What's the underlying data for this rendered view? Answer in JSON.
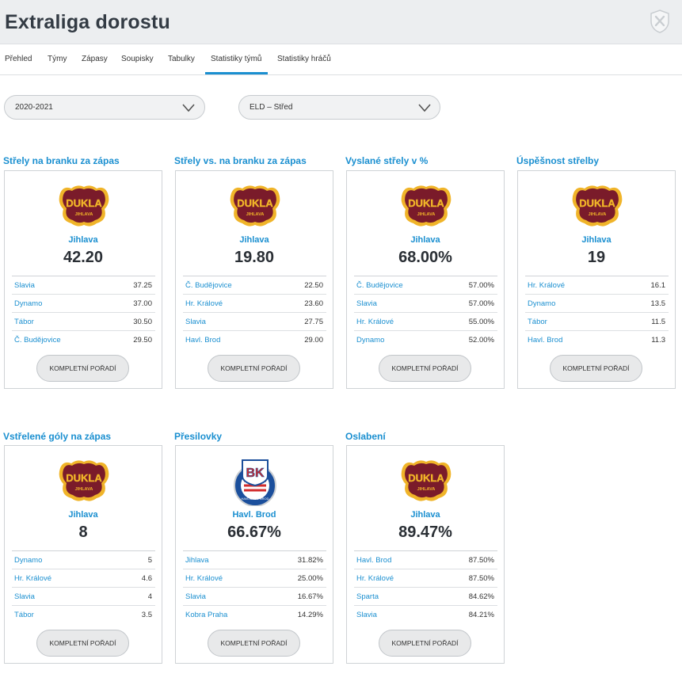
{
  "header": {
    "title": "Extraliga dorostu"
  },
  "tabs": [
    {
      "label": "Přehled"
    },
    {
      "label": "Týmy"
    },
    {
      "label": "Zápasy"
    },
    {
      "label": "Soupisky"
    },
    {
      "label": "Tabulky"
    },
    {
      "label": "Statistiky týmů"
    },
    {
      "label": "Statistiky hráčů"
    }
  ],
  "active_tab": "Statistiky týmů",
  "filters": {
    "season": "2020-2021",
    "group": "ELD – Střed"
  },
  "button_label": "KOMPLETNÍ POŘADÍ",
  "logo_text": {
    "dukla_main": "DUKLA",
    "dukla_sub": "JIHLAVA",
    "bk_main": "BK",
    "bk_sub": "HAVLÍČKŮV BROD"
  },
  "colors": {
    "accent": "#1a8fd0",
    "dukla_maroon": "#7a1b2a",
    "dukla_gold": "#f0b429",
    "bk_blue": "#1b4f9c",
    "bk_red": "#d22b2b"
  },
  "cards": [
    {
      "title": "Střely na branku za zápas",
      "logo": "dukla-logo",
      "leader": "Jihlava",
      "value": "42.20",
      "rows": [
        {
          "team": "Slavia",
          "value": "37.25"
        },
        {
          "team": "Dynamo",
          "value": "37.00"
        },
        {
          "team": "Tábor",
          "value": "30.50"
        },
        {
          "team": "Č. Budějovice",
          "value": "29.50"
        }
      ]
    },
    {
      "title": "Střely vs. na branku za zápas",
      "logo": "dukla-logo",
      "leader": "Jihlava",
      "value": "19.80",
      "rows": [
        {
          "team": "Č. Budějovice",
          "value": "22.50"
        },
        {
          "team": "Hr. Králové",
          "value": "23.60"
        },
        {
          "team": "Slavia",
          "value": "27.75"
        },
        {
          "team": "Havl. Brod",
          "value": "29.00"
        }
      ]
    },
    {
      "title": "Vyslané střely v %",
      "logo": "dukla-logo",
      "leader": "Jihlava",
      "value": "68.00%",
      "rows": [
        {
          "team": "Č. Budějovice",
          "value": "57.00%"
        },
        {
          "team": "Slavia",
          "value": "57.00%"
        },
        {
          "team": "Hr. Králové",
          "value": "55.00%"
        },
        {
          "team": "Dynamo",
          "value": "52.00%"
        }
      ]
    },
    {
      "title": "Úspěšnost střelby",
      "logo": "dukla-logo",
      "leader": "Jihlava",
      "value": "19",
      "rows": [
        {
          "team": "Hr. Králové",
          "value": "16.1"
        },
        {
          "team": "Dynamo",
          "value": "13.5"
        },
        {
          "team": "Tábor",
          "value": "11.5"
        },
        {
          "team": "Havl. Brod",
          "value": "11.3"
        }
      ]
    },
    {
      "title": "Vstřelené góly na zápas",
      "logo": "dukla-logo",
      "leader": "Jihlava",
      "value": "8",
      "rows": [
        {
          "team": "Dynamo",
          "value": "5"
        },
        {
          "team": "Hr. Králové",
          "value": "4.6"
        },
        {
          "team": "Slavia",
          "value": "4"
        },
        {
          "team": "Tábor",
          "value": "3.5"
        }
      ]
    },
    {
      "title": "Přesilovky",
      "logo": "bk-havlickuv-brod-logo",
      "leader": "Havl. Brod",
      "value": "66.67%",
      "rows": [
        {
          "team": "Jihlava",
          "value": "31.82%"
        },
        {
          "team": "Hr. Králové",
          "value": "25.00%"
        },
        {
          "team": "Slavia",
          "value": "16.67%"
        },
        {
          "team": "Kobra Praha",
          "value": "14.29%"
        }
      ]
    },
    {
      "title": "Oslabení",
      "logo": "dukla-logo",
      "leader": "Jihlava",
      "value": "89.47%",
      "rows": [
        {
          "team": "Havl. Brod",
          "value": "87.50%"
        },
        {
          "team": "Hr. Králové",
          "value": "87.50%"
        },
        {
          "team": "Sparta",
          "value": "84.62%"
        },
        {
          "team": "Slavia",
          "value": "84.21%"
        }
      ]
    }
  ]
}
